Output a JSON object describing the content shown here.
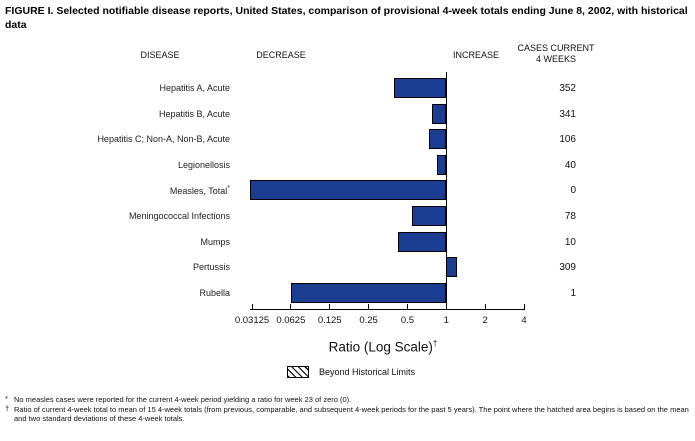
{
  "title": "FIGURE I. Selected notifiable disease reports, United States, comparison of provisional 4-week totals ending June 8, 2002, with historical data",
  "columns": {
    "disease": "DISEASE",
    "decrease": "DECREASE",
    "increase": "INCREASE",
    "cases_line1": "CASES CURRENT",
    "cases_line2": "4 WEEKS"
  },
  "chart_data": {
    "type": "bar",
    "orientation": "horizontal",
    "scale": "log2",
    "title": "Selected notifiable disease reports, comparison of provisional 4-week totals ending June 8, 2002, with historical data",
    "xlabel": "Ratio (Log Scale)",
    "xlabel_superscript": "†",
    "xlim": [
      0.03125,
      4
    ],
    "baseline": 1,
    "grid": false,
    "ticks": [
      0.03125,
      0.0625,
      0.125,
      0.25,
      0.5,
      1,
      2,
      4
    ],
    "tick_labels": [
      "0.03125",
      "0.0625",
      "0.125",
      "0.25",
      "0.5",
      "1",
      "2",
      "4"
    ],
    "bar_color": "#1b3d91",
    "legend": {
      "swatch": "hatched",
      "label": "Beyond Historical Limits",
      "position": "below-axis"
    },
    "rows": [
      {
        "label": "Hepatitis A, Acute",
        "suffix": "",
        "ratio": 0.39,
        "cases": "352"
      },
      {
        "label": "Hepatitis B, Acute",
        "suffix": "",
        "ratio": 0.78,
        "cases": "341"
      },
      {
        "label": "Hepatitis C; Non-A, Non-B, Acute",
        "suffix": "",
        "ratio": 0.74,
        "cases": "106"
      },
      {
        "label": "Legionellosis",
        "suffix": "",
        "ratio": 0.84,
        "cases": "40"
      },
      {
        "label": "Measles, Total",
        "suffix": "*",
        "ratio": 0,
        "cases": "0"
      },
      {
        "label": "Meningococcal Infections",
        "suffix": "",
        "ratio": 0.54,
        "cases": "78"
      },
      {
        "label": "Mumps",
        "suffix": "",
        "ratio": 0.42,
        "cases": "10"
      },
      {
        "label": "Pertussis",
        "suffix": "",
        "ratio": 1.21,
        "cases": "309"
      },
      {
        "label": "Rubella",
        "suffix": "",
        "ratio": 0.0625,
        "cases": "1"
      }
    ]
  },
  "footnotes": [
    {
      "marker": "*",
      "text": "No measles cases were reported for the current 4-week period yielding a ratio for week 23 of zero (0)."
    },
    {
      "marker": "†",
      "text": "Ratio of current 4-week total to mean of 15 4-week totals (from previous, comparable, and subsequent 4-week periods for the past 5 years). The point where the hatched area begins is based on the mean and two standard deviations of these 4-week totals."
    }
  ]
}
